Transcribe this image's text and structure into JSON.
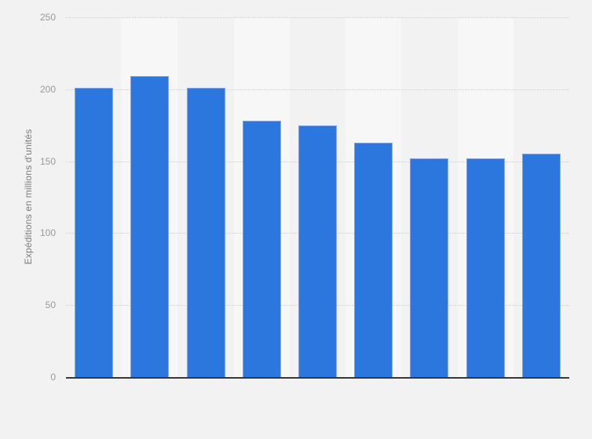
{
  "chart_data": {
    "type": "bar",
    "title": "",
    "xlabel": "",
    "ylabel": "Expéditions en millions d'unités",
    "categories": [
      "",
      "",
      "",
      "",
      "",
      "",
      "",
      "",
      ""
    ],
    "values": [
      201,
      209,
      201,
      178,
      175,
      163,
      152,
      152,
      155
    ],
    "ylim": [
      0,
      250
    ],
    "yticks": [
      0,
      50,
      100,
      150,
      200,
      250
    ],
    "x_tick_labels_visible": false,
    "grid": "horizontal-dotted",
    "legend_position": "none",
    "colors": {
      "background": "#f2f2f2",
      "plot_band": "#f7f7f7",
      "bar_fill": "#2b77dd",
      "bar_border": "#86a7e3",
      "gridline": "#cccccc",
      "axis_line": "#383838",
      "tick_label": "#999999",
      "axis_title": "#7c7c7c"
    }
  }
}
